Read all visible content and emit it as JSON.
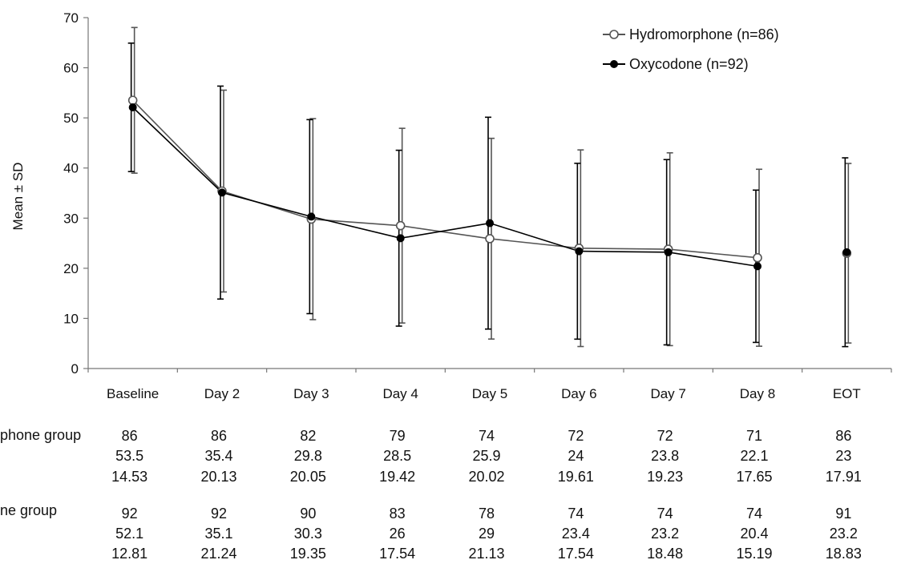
{
  "chart_data": {
    "type": "line",
    "xlabel": "",
    "ylabel": "Mean ± SD",
    "ylim": [
      0,
      70
    ],
    "yticks": [
      0,
      10,
      20,
      30,
      40,
      50,
      60,
      70
    ],
    "grid": false,
    "legend_position": "top-right",
    "categories": [
      "Baseline",
      "Day 2",
      "Day 3",
      "Day 4",
      "Day 5",
      "Day 6",
      "Day 7",
      "Day 8",
      "EOT"
    ],
    "series": [
      {
        "name": "Hydromorphone (n=86)",
        "marker": "open-circle",
        "color": "#555555",
        "values": [
          53.5,
          35.4,
          29.8,
          28.5,
          25.9,
          24,
          23.8,
          22.1,
          23
        ],
        "sd": [
          14.53,
          20.13,
          20.05,
          19.42,
          20.02,
          19.61,
          19.23,
          17.65,
          17.91
        ]
      },
      {
        "name": "Oxycodone (n=92)",
        "marker": "filled-circle",
        "color": "#000000",
        "values": [
          52.1,
          35.1,
          30.3,
          26,
          29,
          23.4,
          23.2,
          20.4,
          23.2
        ],
        "sd": [
          12.81,
          21.24,
          19.35,
          17.54,
          21.13,
          17.54,
          18.48,
          15.19,
          18.83
        ]
      }
    ],
    "table": [
      {
        "label": "phone group",
        "rows": [
          [
            "86",
            "86",
            "82",
            "79",
            "74",
            "72",
            "72",
            "71",
            "86"
          ],
          [
            "53.5",
            "35.4",
            "29.8",
            "28.5",
            "25.9",
            "24",
            "23.8",
            "22.1",
            "23"
          ],
          [
            "14.53",
            "20.13",
            "20.05",
            "19.42",
            "20.02",
            "19.61",
            "19.23",
            "17.65",
            "17.91"
          ]
        ]
      },
      {
        "label": "ne group",
        "rows": [
          [
            "92",
            "92",
            "90",
            "83",
            "78",
            "74",
            "74",
            "74",
            "91"
          ],
          [
            "52.1",
            "35.1",
            "30.3",
            "26",
            "29",
            "23.4",
            "23.2",
            "20.4",
            "23.2"
          ],
          [
            "12.81",
            "21.24",
            "19.35",
            "17.54",
            "21.13",
            "17.54",
            "18.48",
            "15.19",
            "18.83"
          ]
        ]
      }
    ]
  }
}
